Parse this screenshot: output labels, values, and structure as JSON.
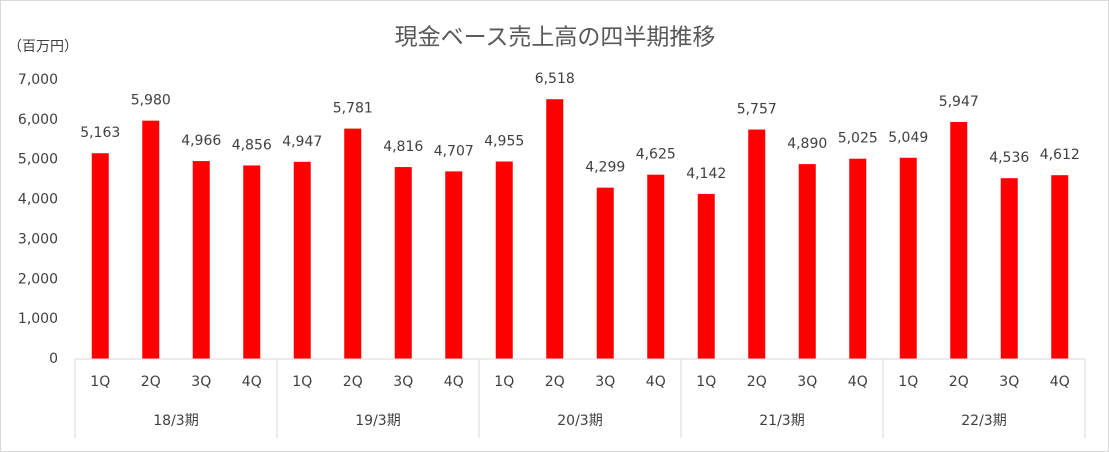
{
  "chart_data": {
    "type": "bar",
    "title": "現金ベース売上高の四半期推移",
    "y_label": "（百万円）",
    "categories": [
      "1Q",
      "2Q",
      "3Q",
      "4Q",
      "1Q",
      "2Q",
      "3Q",
      "4Q",
      "1Q",
      "2Q",
      "3Q",
      "4Q",
      "1Q",
      "2Q",
      "3Q",
      "4Q",
      "1Q",
      "2Q",
      "3Q",
      "4Q"
    ],
    "groups": [
      "18/3期",
      "19/3期",
      "20/3期",
      "21/3期",
      "22/3期"
    ],
    "values": [
      5163,
      5980,
      4966,
      4856,
      4947,
      5781,
      4816,
      4707,
      4955,
      6518,
      4299,
      4625,
      4142,
      5757,
      4890,
      5025,
      5049,
      5947,
      4536,
      4612
    ],
    "value_labels": [
      "5,163",
      "5,980",
      "4,966",
      "4,856",
      "4,947",
      "5,781",
      "4,816",
      "4,707",
      "4,955",
      "6,518",
      "4,299",
      "4,625",
      "4,142",
      "5,757",
      "4,890",
      "5,025",
      "5,049",
      "5,947",
      "4,536",
      "4,612"
    ],
    "color": "#ff0000",
    "ylim": [
      0,
      7000
    ],
    "yticks": [
      0,
      {
        "value": 1000,
        "label": "1,000"
      },
      {
        "value": 2000,
        "label": "2,000"
      },
      {
        "value": 3000,
        "label": "3,000"
      },
      {
        "value": 4000,
        "label": "4,000"
      },
      {
        "value": 5000,
        "label": "5,000"
      },
      {
        "value": 6000,
        "label": "6,000"
      },
      {
        "value": 7000,
        "label": "7,000"
      }
    ],
    "grid": false
  }
}
